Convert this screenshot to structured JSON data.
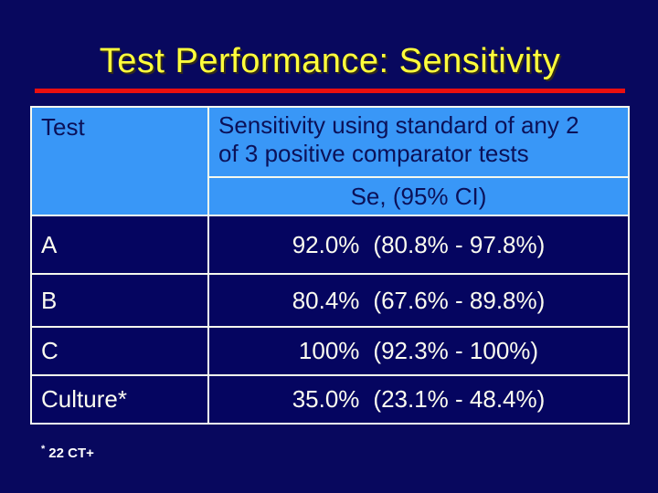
{
  "slide": {
    "title": "Test Performance: Sensitivity",
    "background_color": "#08085e",
    "accent_line_color": "#ea0f0f",
    "title_color": "#ffff3c"
  },
  "table": {
    "header": {
      "col1": "Test",
      "col2_lines": {
        "0": "Sensitivity using standard of any 2",
        "1": "of 3 positive comparator tests"
      },
      "col2_sub": "Se, (95% CI)",
      "header_bg_color": "#3997f7",
      "header_text_color": "#0b1158"
    },
    "rows": [
      {
        "label": "A",
        "se": "92.0%",
        "ci": "(80.8% - 97.8%)"
      },
      {
        "label": "B",
        "se": "80.4%",
        "ci": "(67.6% - 89.8%)"
      },
      {
        "label": "C",
        "se": "100%",
        "ci": "(92.3% - 100%)"
      },
      {
        "label": "Culture*",
        "se": "35.0%",
        "ci": "(23.1% - 48.4%)"
      }
    ],
    "body_bg_color": "#050560",
    "body_text_color": "#fcfcf0",
    "border_color": "#f6f9ee"
  },
  "footnote": {
    "marker": "*",
    "text": "22 CT+"
  }
}
